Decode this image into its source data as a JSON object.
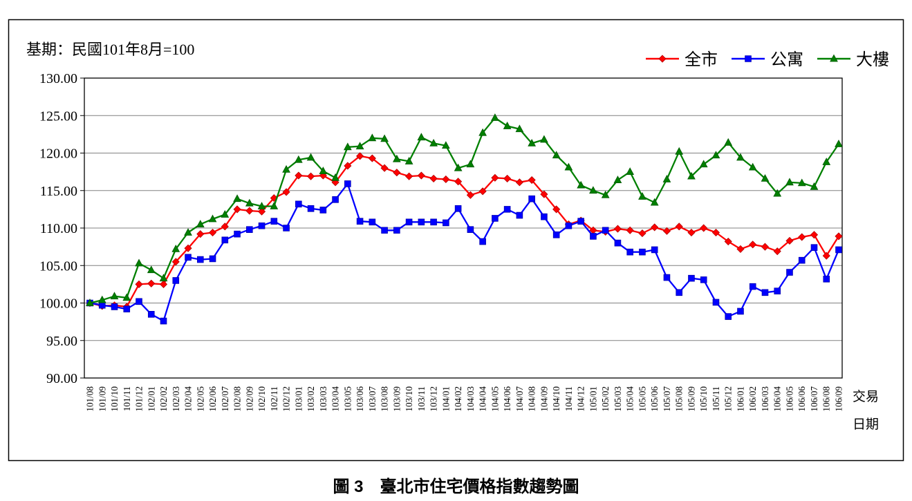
{
  "figure": {
    "base_period_note": "基期：民國101年8月=100",
    "caption": "圖 3　臺北市住宅價格指數趨勢圖",
    "x_axis_unit_line1": "交易",
    "x_axis_unit_line2": "日期"
  },
  "legend": [
    {
      "label": "全市",
      "color": "#ff0000",
      "marker": "diamond"
    },
    {
      "label": "公寓",
      "color": "#0000ff",
      "marker": "square"
    },
    {
      "label": "大樓",
      "color": "#008000",
      "marker": "triangle"
    }
  ],
  "chart_data": {
    "type": "line",
    "title": "圖 3　臺北市住宅價格指數趨勢圖",
    "xlabel": "交易日期",
    "ylabel": "",
    "ylim": [
      90,
      130
    ],
    "ytick_step": 5,
    "grid": "horizontal",
    "legend_position": "top-right",
    "x": [
      "101/08",
      "101/09",
      "101/10",
      "101/11",
      "101/12",
      "102/01",
      "102/02",
      "102/03",
      "102/04",
      "102/05",
      "102/06",
      "102/07",
      "102/08",
      "102/09",
      "102/10",
      "102/11",
      "102/12",
      "103/01",
      "103/02",
      "103/03",
      "103/04",
      "103/05",
      "103/06",
      "103/07",
      "103/08",
      "103/09",
      "103/10",
      "103/11",
      "103/12",
      "104/01",
      "104/02",
      "104/03",
      "104/04",
      "104/05",
      "104/06",
      "104/07",
      "104/08",
      "104/09",
      "104/10",
      "104/11",
      "104/12",
      "105/01",
      "105/02",
      "105/03",
      "105/04",
      "105/05",
      "105/06",
      "105/07",
      "105/08",
      "105/09",
      "105/10",
      "105/11",
      "105/12",
      "106/01",
      "106/02",
      "106/03",
      "106/04",
      "106/05",
      "106/06",
      "106/07",
      "106/08",
      "106/09"
    ],
    "series": [
      {
        "name": "全市",
        "color": "#ff0000",
        "marker": "diamond",
        "values": [
          100.0,
          99.6,
          99.7,
          99.5,
          102.5,
          102.6,
          102.5,
          105.5,
          107.3,
          109.2,
          109.4,
          110.2,
          112.5,
          112.3,
          112.2,
          114.0,
          114.8,
          117.0,
          116.9,
          117.0,
          116.1,
          118.3,
          119.6,
          119.3,
          118.0,
          117.4,
          116.9,
          117.0,
          116.6,
          116.5,
          116.2,
          114.4,
          114.9,
          116.7,
          116.6,
          116.1,
          116.4,
          114.5,
          112.5,
          110.5,
          111.0,
          109.7,
          109.5,
          109.9,
          109.7,
          109.3,
          110.1,
          109.6,
          110.2,
          109.4,
          110.0,
          109.4,
          108.2,
          107.2,
          107.8,
          107.5,
          106.9,
          108.3,
          108.8,
          109.1,
          106.3,
          108.9
        ]
      },
      {
        "name": "公寓",
        "color": "#0000ff",
        "marker": "square",
        "values": [
          100.0,
          99.7,
          99.5,
          99.2,
          100.2,
          98.5,
          97.6,
          103.0,
          106.1,
          105.8,
          105.9,
          108.4,
          109.2,
          109.8,
          110.3,
          110.9,
          110.0,
          113.2,
          112.6,
          112.4,
          113.8,
          115.9,
          110.9,
          110.8,
          109.7,
          109.7,
          110.8,
          110.8,
          110.8,
          110.7,
          112.6,
          109.8,
          108.2,
          111.3,
          112.5,
          111.7,
          113.9,
          111.5,
          109.1,
          110.3,
          110.9,
          108.9,
          109.7,
          108.0,
          106.8,
          106.8,
          107.1,
          103.4,
          101.4,
          103.3,
          103.1,
          100.1,
          98.2,
          98.9,
          102.2,
          101.4,
          101.6,
          104.1,
          105.7,
          107.4,
          103.2,
          107.1
        ]
      },
      {
        "name": "大樓",
        "color": "#008000",
        "marker": "triangle",
        "values": [
          100.0,
          100.4,
          100.9,
          100.7,
          105.3,
          104.4,
          103.3,
          107.2,
          109.4,
          110.5,
          111.2,
          111.8,
          113.9,
          113.3,
          112.9,
          112.9,
          117.8,
          119.1,
          119.4,
          117.6,
          116.7,
          120.8,
          120.9,
          122.0,
          121.9,
          119.2,
          118.9,
          122.1,
          121.3,
          121.0,
          118.0,
          118.5,
          122.7,
          124.7,
          123.6,
          123.2,
          121.3,
          121.8,
          119.7,
          118.1,
          115.7,
          115.0,
          114.4,
          116.4,
          117.5,
          114.2,
          113.4,
          116.5,
          120.2,
          116.9,
          118.5,
          119.7,
          121.4,
          119.4,
          118.1,
          116.6,
          114.6,
          116.1,
          116.0,
          115.5,
          118.8,
          121.2
        ]
      }
    ]
  }
}
